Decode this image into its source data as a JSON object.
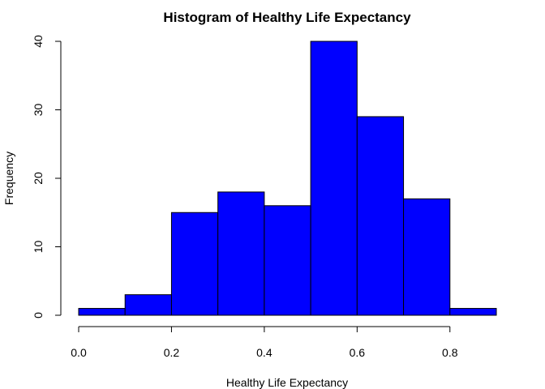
{
  "chart_data": {
    "type": "bar",
    "title": "Histogram of Healthy Life Expectancy",
    "xlabel": "Healthy Life Expectancy",
    "ylabel": "Frequency",
    "bins": [
      {
        "start": 0.0,
        "end": 0.1,
        "count": 1
      },
      {
        "start": 0.1,
        "end": 0.2,
        "count": 3
      },
      {
        "start": 0.2,
        "end": 0.3,
        "count": 15
      },
      {
        "start": 0.3,
        "end": 0.4,
        "count": 18
      },
      {
        "start": 0.4,
        "end": 0.5,
        "count": 16
      },
      {
        "start": 0.5,
        "end": 0.6,
        "count": 40
      },
      {
        "start": 0.6,
        "end": 0.7,
        "count": 29
      },
      {
        "start": 0.7,
        "end": 0.8,
        "count": 17
      },
      {
        "start": 0.8,
        "end": 0.9,
        "count": 1
      }
    ],
    "xlim": [
      0.0,
      0.9
    ],
    "ylim": [
      0,
      40
    ],
    "x_ticks": [
      "0.0",
      "0.2",
      "0.4",
      "0.6",
      "0.8"
    ],
    "y_ticks": [
      "0",
      "10",
      "20",
      "30",
      "40"
    ],
    "bar_color": "#0000ff",
    "grid": false
  }
}
